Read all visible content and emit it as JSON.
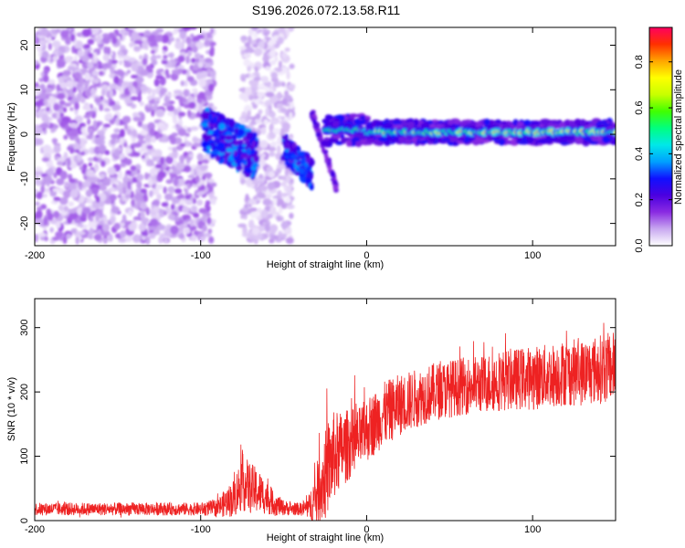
{
  "title": "S196.2026.072.13.58.R11",
  "chart_data": [
    {
      "type": "heatmap",
      "title": "S196.2026.072.13.58.R11",
      "xlabel": "Height of straight line (km)",
      "ylabel": "Frequency (Hz)",
      "xlim": [
        -200,
        150
      ],
      "ylim": [
        -25,
        24
      ],
      "xticks": [
        -200,
        -100,
        0,
        100
      ],
      "yticks": [
        20,
        10,
        0,
        -10,
        -20
      ],
      "colorbar": {
        "label": "Normalized spectral amplitude",
        "range": [
          0,
          0.95
        ],
        "ticks": [
          "0.0",
          "0.2",
          "0.4",
          "0.6",
          "0.8"
        ],
        "colors": [
          "#ffffff",
          "#c8a8f0",
          "#8a2be2",
          "#4b00e0",
          "#1010ff",
          "#00a0ff",
          "#00e8e8",
          "#00ff80",
          "#40ff00",
          "#c8ff00",
          "#ffff00",
          "#ffa500",
          "#ff3000",
          "#ff0060"
        ]
      },
      "regions": [
        {
          "name": "noise",
          "x": [
            -200,
            -92
          ],
          "freq_range": [
            -24,
            24
          ],
          "amplitude": 0.12
        },
        {
          "name": "noise",
          "x": [
            -75,
            -45
          ],
          "freq_range": [
            -24,
            24
          ],
          "amplitude": 0.08
        },
        {
          "name": "cluster",
          "x": [
            -98,
            -66
          ],
          "freq_center": -2,
          "freq_spread": 5,
          "amplitude": 0.3
        },
        {
          "name": "cluster",
          "x": [
            -50,
            -33
          ],
          "freq_center": -6,
          "freq_spread": 3,
          "amplitude": 0.3
        },
        {
          "name": "ridge",
          "x": [
            -33,
            -18
          ],
          "freq_from": 5,
          "freq_to": -12,
          "amplitude": 0.2
        },
        {
          "name": "signal",
          "x": [
            -25,
            0
          ],
          "freq_center": 1,
          "freq_spread": 2,
          "amplitude": 0.6
        },
        {
          "name": "signal",
          "x": [
            0,
            150
          ],
          "freq_center": 0.5,
          "freq_spread": 1.5,
          "amplitude": 0.85
        }
      ]
    },
    {
      "type": "line",
      "xlabel": "Height of straight line (km)",
      "ylabel": "SNR (10 * v/v)",
      "xlim": [
        -200,
        150
      ],
      "ylim": [
        0,
        345
      ],
      "xticks": [
        -200,
        -100,
        0,
        100
      ],
      "yticks": [
        0,
        100,
        200,
        300
      ],
      "series": [
        {
          "name": "SNR",
          "color": "#ee2222",
          "x": [
            -200,
            -180,
            -160,
            -140,
            -120,
            -100,
            -90,
            -80,
            -75,
            -70,
            -65,
            -60,
            -55,
            -50,
            -45,
            -40,
            -35,
            -30,
            -25,
            -20,
            -15,
            -10,
            -5,
            0,
            10,
            20,
            30,
            40,
            50,
            60,
            70,
            80,
            90,
            100,
            110,
            120,
            130,
            140,
            150
          ],
          "values": [
            18,
            18,
            18,
            18,
            18,
            18,
            20,
            35,
            60,
            50,
            45,
            35,
            25,
            20,
            18,
            18,
            20,
            40,
            70,
            100,
            110,
            120,
            125,
            140,
            165,
            180,
            190,
            200,
            205,
            210,
            212,
            218,
            220,
            222,
            225,
            230,
            230,
            235,
            240
          ],
          "spread": [
            10,
            10,
            10,
            10,
            10,
            10,
            14,
            30,
            45,
            40,
            35,
            25,
            18,
            12,
            10,
            10,
            18,
            50,
            70,
            70,
            60,
            55,
            50,
            50,
            50,
            48,
            46,
            45,
            45,
            45,
            45,
            48,
            48,
            50,
            50,
            52,
            52,
            54,
            55
          ]
        }
      ]
    }
  ]
}
